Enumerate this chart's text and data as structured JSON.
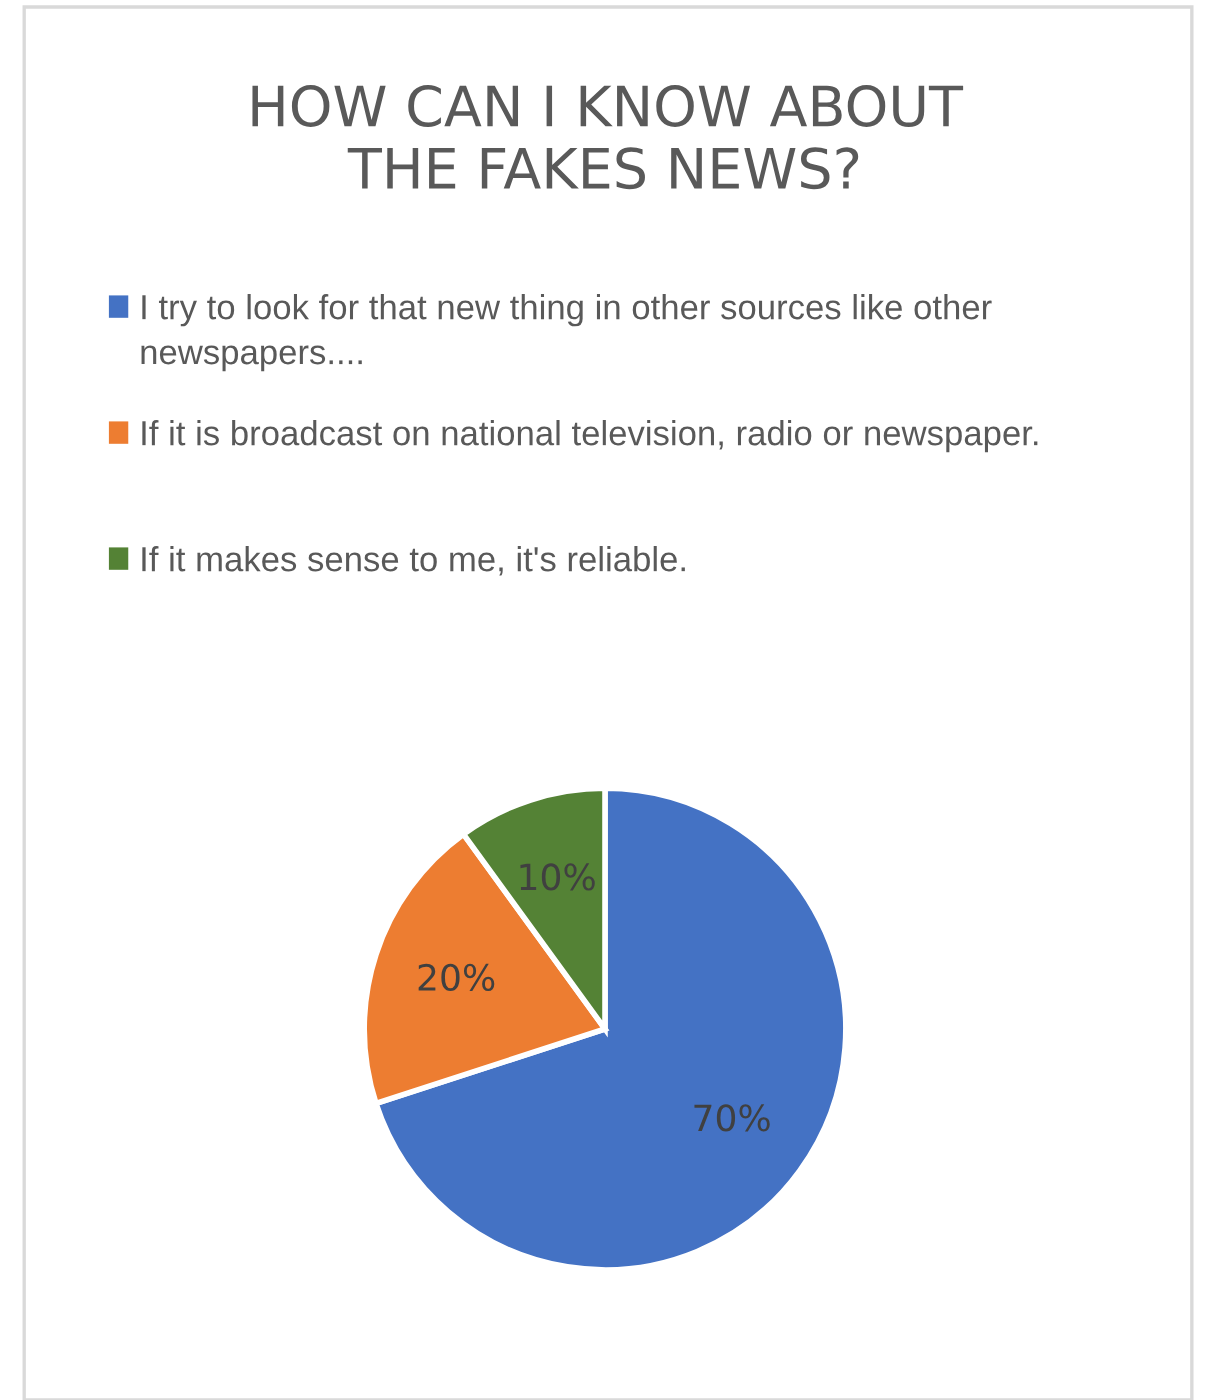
{
  "chart_data": {
    "type": "pie",
    "title": "HOW CAN I KNOW ABOUT\nTHE FAKES NEWS?",
    "categories": [
      "I try to look for that new thing in other sources like other newspapers....",
      "If it is broadcast on national television, radio or newspaper.",
      "If it makes sense to me, it's reliable."
    ],
    "values": [
      70,
      20,
      10
    ],
    "value_labels": [
      "70%",
      "20%",
      "10%"
    ],
    "colors": [
      "#4472c4",
      "#ed7d31",
      "#548235"
    ],
    "legend": "top"
  }
}
